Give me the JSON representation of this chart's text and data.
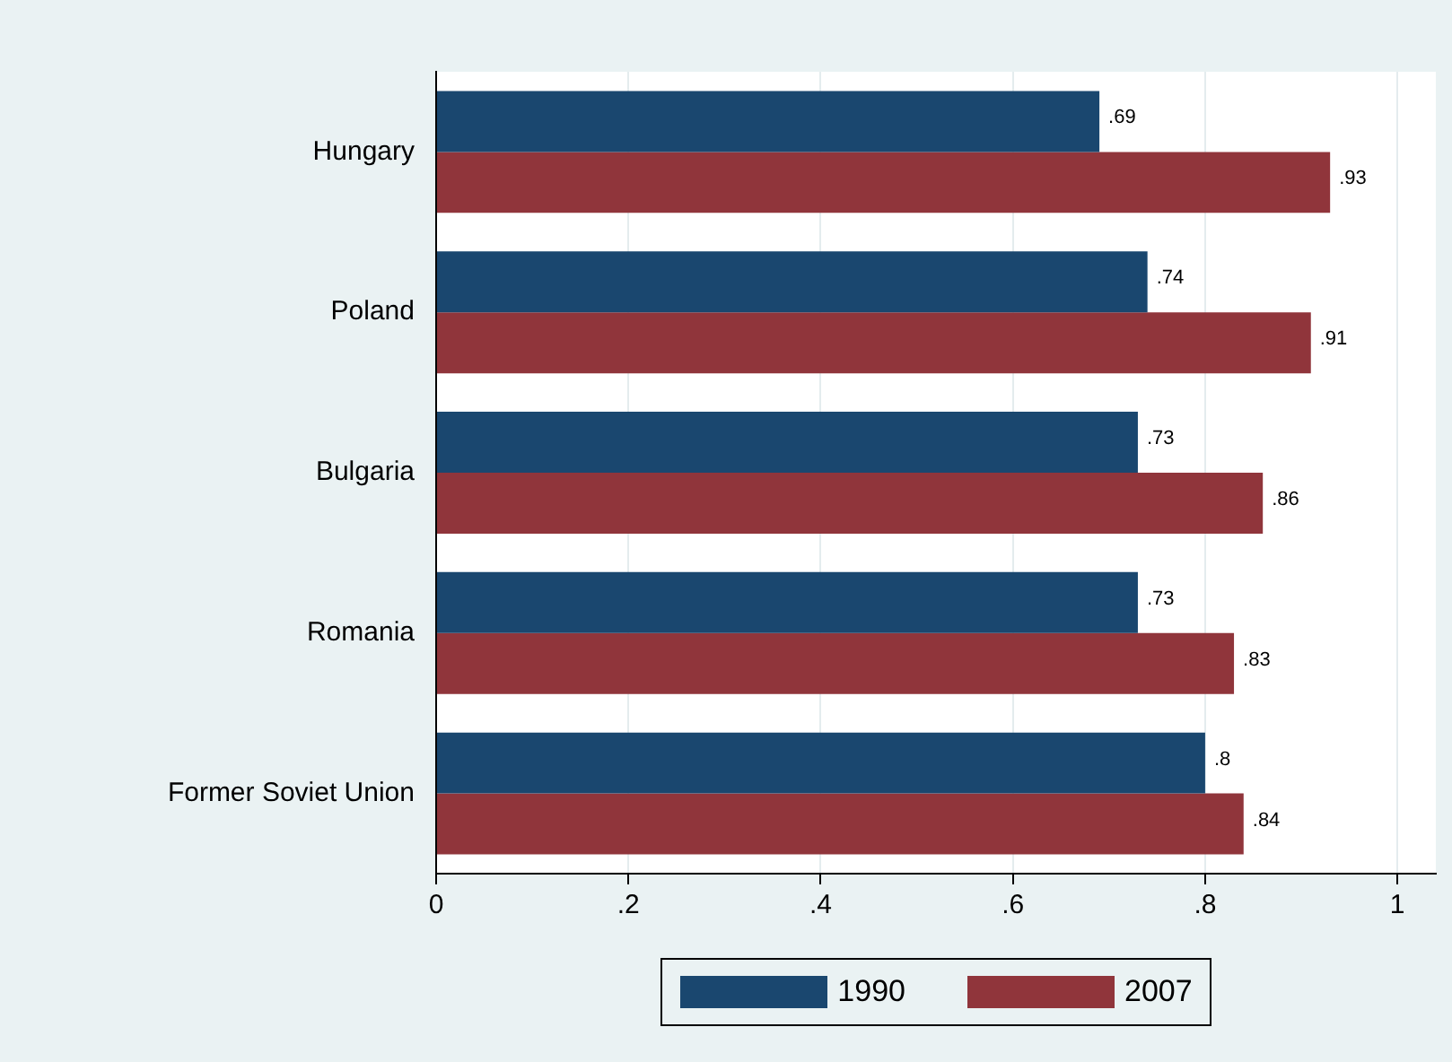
{
  "chart_data": {
    "type": "bar",
    "orientation": "horizontal",
    "categories": [
      "Hungary",
      "Poland",
      "Bulgaria",
      "Romania",
      "Former Soviet Union"
    ],
    "series": [
      {
        "name": "1990",
        "color": "#1a476f",
        "values": [
          0.69,
          0.74,
          0.73,
          0.73,
          0.8
        ],
        "value_labels": [
          ".69",
          ".74",
          ".73",
          ".73",
          ".8"
        ]
      },
      {
        "name": "2007",
        "color": "#90353b",
        "values": [
          0.93,
          0.91,
          0.86,
          0.83,
          0.84
        ],
        "value_labels": [
          ".93",
          ".91",
          ".86",
          ".83",
          ".84"
        ]
      }
    ],
    "xlim": [
      0,
      1.04
    ],
    "xticks": [
      0,
      {
        "value": 0.2,
        "label": ".2"
      },
      {
        "value": 0.4,
        "label": ".4"
      },
      {
        "value": 0.6,
        "label": ".6"
      },
      {
        "value": 0.8,
        "label": ".8"
      },
      1
    ],
    "grid": "x",
    "legend": "bottom"
  }
}
